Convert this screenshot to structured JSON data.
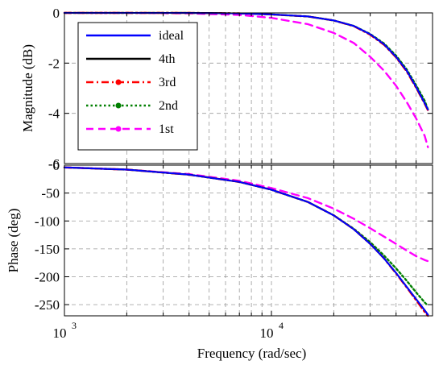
{
  "chart_data": [
    {
      "type": "line",
      "title": "",
      "xlabel": "",
      "ylabel": "Magnitude (dB)",
      "x_scale": "log",
      "xlim": [
        1000,
        60000
      ],
      "ylim": [
        -6,
        0
      ],
      "yticks": [
        0,
        -2,
        -4,
        -6
      ],
      "yticklabels": [
        "0",
        "-2",
        "-4",
        "-6"
      ],
      "grid": true,
      "legend_position": "top-left",
      "series": [
        {
          "name": "ideal",
          "color": "#0000ff",
          "style": "solid",
          "marker": "none",
          "x": [
            1000,
            2000,
            4000,
            7000,
            10000,
            15000,
            20000,
            25000,
            30000,
            35000,
            40000,
            45000,
            50000,
            55000,
            57000
          ],
          "y": [
            0,
            0,
            0,
            -0.02,
            -0.06,
            -0.14,
            -0.3,
            -0.52,
            -0.85,
            -1.25,
            -1.75,
            -2.3,
            -2.95,
            -3.6,
            -3.85
          ]
        },
        {
          "name": "4th",
          "color": "#000000",
          "style": "solid",
          "marker": "none",
          "x": [
            1000,
            2000,
            4000,
            7000,
            10000,
            15000,
            20000,
            25000,
            30000,
            35000,
            40000,
            45000,
            50000,
            55000,
            57000
          ],
          "y": [
            0,
            0,
            0,
            -0.02,
            -0.06,
            -0.14,
            -0.3,
            -0.52,
            -0.85,
            -1.25,
            -1.75,
            -2.3,
            -2.95,
            -3.6,
            -3.85
          ]
        },
        {
          "name": "3rd",
          "color": "#ff0000",
          "style": "dashdot",
          "marker": "dot",
          "x": [
            1000,
            2000,
            4000,
            7000,
            10000,
            15000,
            20000,
            25000,
            30000,
            35000,
            40000,
            45000,
            50000,
            55000,
            57000
          ],
          "y": [
            0,
            0,
            0,
            -0.02,
            -0.06,
            -0.14,
            -0.3,
            -0.53,
            -0.87,
            -1.27,
            -1.77,
            -2.33,
            -2.98,
            -3.62,
            -3.88
          ]
        },
        {
          "name": "2nd",
          "color": "#007f00",
          "style": "dotted",
          "marker": "dot",
          "x": [
            1000,
            2000,
            4000,
            7000,
            10000,
            15000,
            20000,
            25000,
            30000,
            35000,
            40000,
            45000,
            50000,
            55000,
            57000
          ],
          "y": [
            0,
            0,
            0,
            -0.02,
            -0.06,
            -0.14,
            -0.3,
            -0.52,
            -0.84,
            -1.22,
            -1.7,
            -2.25,
            -2.88,
            -3.5,
            -3.85
          ]
        },
        {
          "name": "1st",
          "color": "#ff00ff",
          "style": "dashed",
          "marker": "dot",
          "x": [
            1000,
            2000,
            4000,
            7000,
            10000,
            15000,
            20000,
            25000,
            30000,
            35000,
            40000,
            45000,
            50000,
            55000,
            57000
          ],
          "y": [
            0,
            0,
            -0.02,
            -0.08,
            -0.2,
            -0.45,
            -0.8,
            -1.2,
            -1.75,
            -2.3,
            -2.9,
            -3.55,
            -4.2,
            -4.9,
            -5.35
          ]
        }
      ]
    },
    {
      "type": "line",
      "title": "",
      "xlabel": "Frequency (rad/sec)",
      "ylabel": "Phase (deg)",
      "x_scale": "log",
      "xlim": [
        1000,
        60000
      ],
      "xticks": [
        1000,
        10000
      ],
      "xticklabels": [
        "10",
        "10"
      ],
      "xtick_exponents": [
        "3",
        "4"
      ],
      "ylim": [
        -270,
        0
      ],
      "yticks": [
        0,
        -50,
        -100,
        -150,
        -200,
        -250
      ],
      "yticklabels": [
        "0",
        "-50",
        "-100",
        "-150",
        "-200",
        "-250"
      ],
      "grid": true,
      "series": [
        {
          "name": "ideal",
          "color": "#0000ff",
          "style": "solid",
          "x": [
            1000,
            2000,
            4000,
            7000,
            10000,
            15000,
            20000,
            25000,
            30000,
            35000,
            40000,
            45000,
            50000,
            55000,
            57000
          ],
          "y": [
            -4,
            -8,
            -17,
            -30,
            -44,
            -66,
            -90,
            -115,
            -141,
            -167,
            -193,
            -218,
            -240,
            -260,
            -268
          ]
        },
        {
          "name": "4th",
          "color": "#000000",
          "style": "solid",
          "x": [
            1000,
            2000,
            4000,
            7000,
            10000,
            15000,
            20000,
            25000,
            30000,
            35000,
            40000,
            45000,
            50000,
            55000,
            57000
          ],
          "y": [
            -4,
            -8,
            -17,
            -30,
            -44,
            -66,
            -90,
            -115,
            -141,
            -167,
            -193,
            -218,
            -240,
            -260,
            -268
          ]
        },
        {
          "name": "3rd",
          "color": "#ff0000",
          "style": "dashdot",
          "x": [
            1000,
            2000,
            4000,
            7000,
            10000,
            15000,
            20000,
            25000,
            30000,
            35000,
            40000,
            45000,
            50000,
            55000,
            57000
          ],
          "y": [
            -4,
            -8,
            -17,
            -30,
            -44,
            -66,
            -90,
            -115,
            -141,
            -167,
            -194,
            -219,
            -242,
            -263,
            -270
          ]
        },
        {
          "name": "2nd",
          "color": "#007f00",
          "style": "dotted",
          "x": [
            1000,
            2000,
            4000,
            7000,
            10000,
            15000,
            20000,
            25000,
            30000,
            35000,
            40000,
            45000,
            50000,
            55000,
            57000
          ],
          "y": [
            -4,
            -8,
            -17,
            -30,
            -44,
            -66,
            -90,
            -114,
            -138,
            -162,
            -185,
            -207,
            -228,
            -246,
            -252
          ]
        },
        {
          "name": "1st",
          "color": "#ff00ff",
          "style": "dashed",
          "x": [
            1000,
            2000,
            4000,
            7000,
            10000,
            15000,
            20000,
            25000,
            30000,
            35000,
            40000,
            45000,
            50000,
            55000,
            57000
          ],
          "y": [
            -4,
            -8,
            -16,
            -28,
            -41,
            -59,
            -78,
            -96,
            -113,
            -128,
            -141,
            -153,
            -163,
            -170,
            -172
          ]
        }
      ]
    }
  ]
}
